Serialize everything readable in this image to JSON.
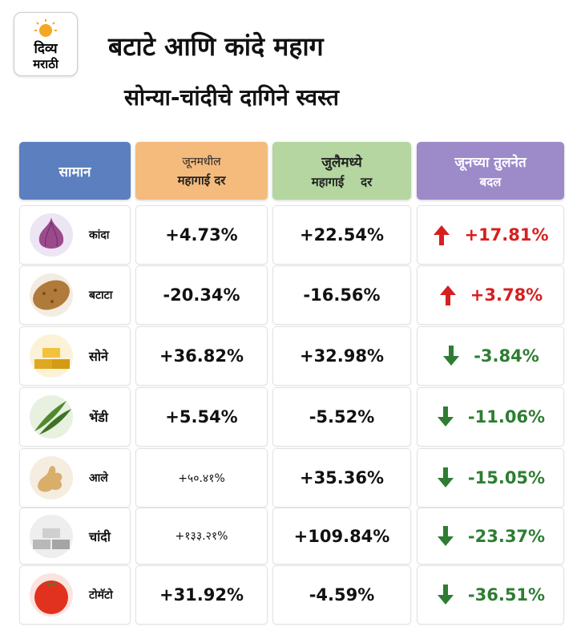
{
  "logo": {
    "line1": "दिव्य",
    "line2": "मराठी"
  },
  "header": {
    "title": "बटाटे आणि कांदे महाग",
    "subtitle": "सोन्या-चांदीचे दागिने स्वस्त"
  },
  "table": {
    "columns": [
      {
        "line1": "सामान"
      },
      {
        "line1": "जूनमधील",
        "line2": "महागाई दर"
      },
      {
        "line1": "जुलैमध्ये",
        "line2": "महागाई    दर"
      },
      {
        "line1": "जूनच्या तुलनेत",
        "line2": "बदल"
      }
    ],
    "rows": [
      [
        "कांदा",
        "+4.73%",
        "+22.54%",
        "+17.81%"
      ],
      [
        "बटाटा",
        "-20.34%",
        "-16.56%",
        "+3.78%"
      ],
      [
        "सोने",
        "+36.82%",
        "+32.98%",
        "-3.84%"
      ],
      [
        "भेंडी",
        "+5.54%",
        "-5.52%",
        "-11.06%"
      ],
      [
        "आले",
        "+५०.४१%",
        "+35.36%",
        "-15.05%"
      ],
      [
        "चांदी",
        "+१३३.२१%",
        "+109.84%",
        "-23.37%"
      ],
      [
        "टोमॅटो",
        "+31.92%",
        "-4.59%",
        "-36.51%"
      ]
    ]
  }
}
